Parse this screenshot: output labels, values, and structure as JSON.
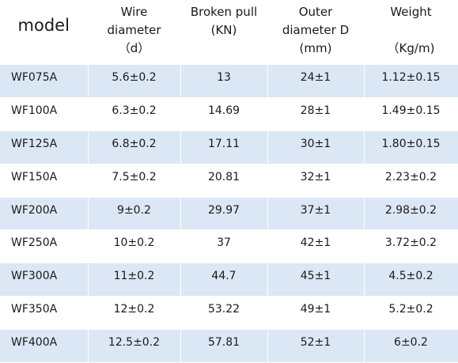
{
  "table": {
    "header": {
      "model": "model",
      "wire": [
        "Wire",
        "diameter",
        "（d）"
      ],
      "pull": [
        "Broken pull",
        "(KN)"
      ],
      "outer": [
        "Outer",
        "diameter D",
        "(mm)"
      ],
      "weight": [
        "Weight",
        "",
        "（Kg/m)"
      ]
    },
    "rows": [
      {
        "model": "WF075A",
        "wire": "5.6±0.2",
        "pull": "13",
        "outer": "24±1",
        "weight": "1.12±0.15"
      },
      {
        "model": "WF100A",
        "wire": "6.3±0.2",
        "pull": "14.69",
        "outer": "28±1",
        "weight": "1.49±0.15"
      },
      {
        "model": "WF125A",
        "wire": "6.8±0.2",
        "pull": "17.11",
        "outer": "30±1",
        "weight": "1.80±0.15"
      },
      {
        "model": "WF150A",
        "wire": "7.5±0.2",
        "pull": "20.81",
        "outer": "32±1",
        "weight": "2.23±0.2"
      },
      {
        "model": "WF200A",
        "wire": "9±0.2",
        "pull": "29.97",
        "outer": "37±1",
        "weight": "2.98±0.2"
      },
      {
        "model": "WF250A",
        "wire": "10±0.2",
        "pull": "37",
        "outer": "42±1",
        "weight": "3.72±0.2"
      },
      {
        "model": "WF300A",
        "wire": "11±0.2",
        "pull": "44.7",
        "outer": "45±1",
        "weight": "4.5±0.2"
      },
      {
        "model": "WF350A",
        "wire": "12±0.2",
        "pull": "53.22",
        "outer": "49±1",
        "weight": "5.2±0.2"
      },
      {
        "model": "WF400A",
        "wire": "12.5±0.2",
        "pull": "57.81",
        "outer": "52±1",
        "weight": "6±0.2"
      }
    ],
    "colors": {
      "shaded_row": "#dbe7f4",
      "plain_row": "#ffffff",
      "text": "#1a1a1a"
    }
  }
}
